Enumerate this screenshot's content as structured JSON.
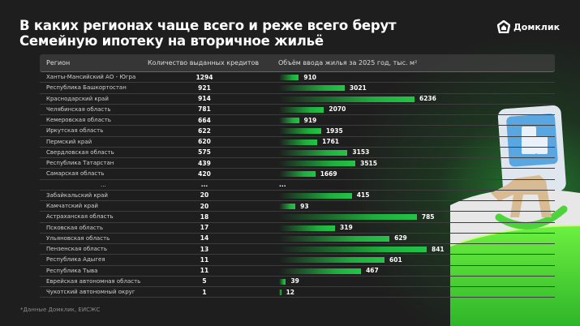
{
  "title": "В каких регионах чаще всего и реже всего берут Семейную ипотеку на вторичное жильё",
  "title_lines": [
    "В каких регионах чаще всего и реже всего берут",
    "Семейную ипотеку на вторичное жильё"
  ],
  "logo": {
    "text": "Домклик",
    "icon": "house-logo-icon"
  },
  "footnote": "*Данные Домклик, ЕИСЖС",
  "colors": {
    "background": "#1e1e1e",
    "bar": "#23c447",
    "accent_green": "#3fd64a"
  },
  "chart_data": {
    "type": "table",
    "columns": [
      "Регион",
      "Количество выданных кредитов",
      "Объём ввода жилья за 2025 год, тыс. м²"
    ],
    "top_rows": [
      {
        "region": "Ханты-Мансийский АО - Югра",
        "loans": 1294,
        "housing": 910
      },
      {
        "region": "Республика Башкортостан",
        "loans": 921,
        "housing": 3021
      },
      {
        "region": "Краснодарский край",
        "loans": 914,
        "housing": 6236
      },
      {
        "region": "Челябинская область",
        "loans": 781,
        "housing": 2070
      },
      {
        "region": "Кемеровская область",
        "loans": 664,
        "housing": 919
      },
      {
        "region": "Иркутская область",
        "loans": 622,
        "housing": 1935
      },
      {
        "region": "Пермский край",
        "loans": 620,
        "housing": 1761
      },
      {
        "region": "Свердловская область",
        "loans": 575,
        "housing": 3153
      },
      {
        "region": "Республика Татарстан",
        "loans": 439,
        "housing": 3515
      },
      {
        "region": "Самарская область",
        "loans": 420,
        "housing": 1669
      }
    ],
    "separator": {
      "region": "...",
      "loans": "...",
      "housing": "..."
    },
    "bottom_rows": [
      {
        "region": "Забайкальский край",
        "loans": 20,
        "housing": 415
      },
      {
        "region": "Камчатский край",
        "loans": 20,
        "housing": 93
      },
      {
        "region": "Астраханская область",
        "loans": 18,
        "housing": 785
      },
      {
        "region": "Псковская область",
        "loans": 17,
        "housing": 319
      },
      {
        "region": "Ульяновская область",
        "loans": 14,
        "housing": 629
      },
      {
        "region": "Пензенская область",
        "loans": 13,
        "housing": 841
      },
      {
        "region": "Республика Адыгея",
        "loans": 11,
        "housing": 601
      },
      {
        "region": "Республика Тыва",
        "loans": 11,
        "housing": 467
      },
      {
        "region": "Еврейская автономная область",
        "loans": 5,
        "housing": 39
      },
      {
        "region": "Чукотский автономный округ",
        "loans": 1,
        "housing": 12
      }
    ]
  }
}
